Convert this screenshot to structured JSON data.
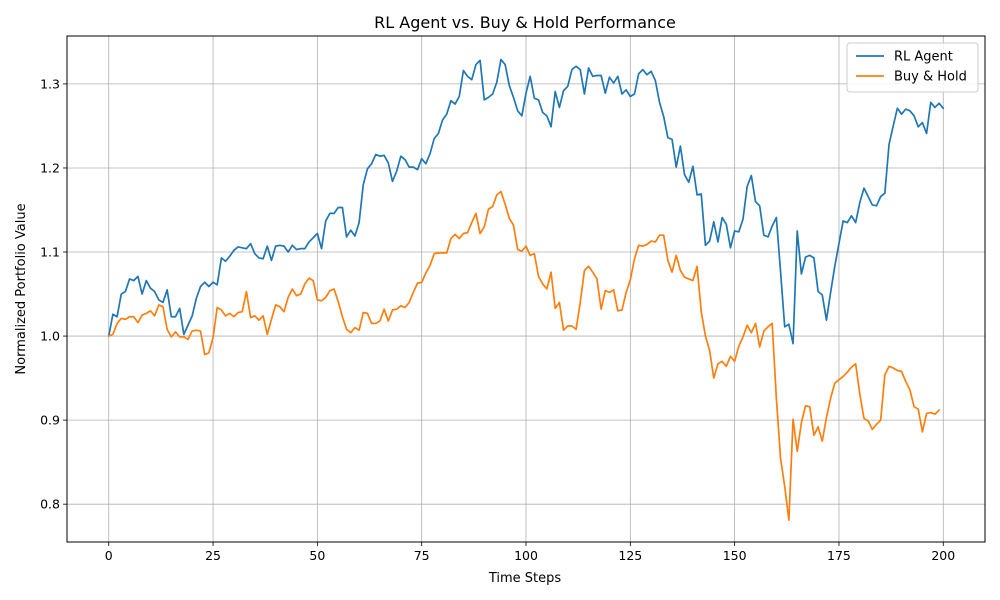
{
  "chart_data": {
    "type": "line",
    "title": "RL Agent vs. Buy & Hold Performance",
    "xlabel": "Time Steps",
    "ylabel": "Normalized Portfolio Value",
    "xlim": [
      -10,
      210
    ],
    "ylim": [
      0.755,
      1.357
    ],
    "xticks": [
      0,
      25,
      50,
      75,
      100,
      125,
      150,
      175,
      200
    ],
    "yticks": [
      0.8,
      0.9,
      1.0,
      1.1,
      1.2,
      1.3
    ],
    "ytick_labels": [
      "0.8",
      "0.9",
      "1.0",
      "1.1",
      "1.2",
      "1.3"
    ],
    "grid": true,
    "legend_position": "top-right",
    "series": [
      {
        "name": "RL Agent",
        "color": "#1f77b4",
        "values": [
          1.0,
          1.026,
          1.023,
          1.05,
          1.053,
          1.068,
          1.066,
          1.071,
          1.05,
          1.066,
          1.057,
          1.053,
          1.043,
          1.04,
          1.055,
          1.023,
          1.023,
          1.033,
          1.002,
          1.013,
          1.024,
          1.045,
          1.059,
          1.064,
          1.059,
          1.064,
          1.061,
          1.093,
          1.089,
          1.095,
          1.102,
          1.106,
          1.105,
          1.104,
          1.11,
          1.098,
          1.093,
          1.092,
          1.107,
          1.09,
          1.107,
          1.108,
          1.107,
          1.1,
          1.108,
          1.103,
          1.104,
          1.104,
          1.112,
          1.117,
          1.122,
          1.104,
          1.137,
          1.146,
          1.146,
          1.153,
          1.153,
          1.118,
          1.126,
          1.119,
          1.135,
          1.18,
          1.199,
          1.205,
          1.216,
          1.214,
          1.215,
          1.206,
          1.184,
          1.196,
          1.214,
          1.21,
          1.201,
          1.201,
          1.198,
          1.211,
          1.205,
          1.217,
          1.235,
          1.241,
          1.257,
          1.264,
          1.28,
          1.276,
          1.285,
          1.316,
          1.309,
          1.305,
          1.323,
          1.328,
          1.281,
          1.284,
          1.288,
          1.302,
          1.329,
          1.323,
          1.298,
          1.284,
          1.268,
          1.262,
          1.289,
          1.309,
          1.283,
          1.281,
          1.266,
          1.262,
          1.249,
          1.291,
          1.272,
          1.292,
          1.297,
          1.317,
          1.321,
          1.317,
          1.288,
          1.319,
          1.309,
          1.31,
          1.31,
          1.289,
          1.308,
          1.301,
          1.309,
          1.288,
          1.293,
          1.285,
          1.288,
          1.312,
          1.317,
          1.311,
          1.315,
          1.304,
          1.278,
          1.261,
          1.236,
          1.234,
          1.201,
          1.226,
          1.192,
          1.183,
          1.202,
          1.168,
          1.169,
          1.108,
          1.113,
          1.136,
          1.112,
          1.141,
          1.133,
          1.105,
          1.125,
          1.124,
          1.139,
          1.178,
          1.191,
          1.16,
          1.155,
          1.12,
          1.118,
          1.131,
          1.141,
          1.077,
          1.011,
          1.014,
          0.991,
          1.125,
          1.074,
          1.094,
          1.096,
          1.093,
          1.053,
          1.049,
          1.019,
          1.052,
          1.083,
          1.11,
          1.137,
          1.135,
          1.143,
          1.135,
          1.159,
          1.176,
          1.166,
          1.156,
          1.155,
          1.166,
          1.17,
          1.228,
          1.25,
          1.271,
          1.264,
          1.27,
          1.268,
          1.262,
          1.249,
          1.254,
          1.241,
          1.278,
          1.272,
          1.277,
          1.271
        ]
      },
      {
        "name": "Buy & Hold",
        "color": "#ff7f0e",
        "values": [
          1.0,
          1.002,
          1.015,
          1.021,
          1.02,
          1.023,
          1.023,
          1.016,
          1.025,
          1.027,
          1.03,
          1.024,
          1.037,
          1.035,
          1.008,
          0.999,
          1.005,
          0.999,
          0.999,
          0.996,
          1.006,
          1.007,
          1.006,
          0.978,
          0.98,
          0.998,
          1.034,
          1.031,
          1.024,
          1.027,
          1.023,
          1.028,
          1.029,
          1.053,
          1.022,
          1.024,
          1.019,
          1.024,
          1.002,
          1.02,
          1.037,
          1.035,
          1.029,
          1.046,
          1.056,
          1.048,
          1.05,
          1.062,
          1.069,
          1.066,
          1.043,
          1.042,
          1.046,
          1.054,
          1.056,
          1.041,
          1.023,
          1.008,
          1.004,
          1.01,
          1.007,
          1.028,
          1.027,
          1.015,
          1.015,
          1.018,
          1.032,
          1.018,
          1.031,
          1.032,
          1.036,
          1.034,
          1.04,
          1.052,
          1.063,
          1.064,
          1.075,
          1.084,
          1.098,
          1.099,
          1.099,
          1.099,
          1.116,
          1.121,
          1.116,
          1.122,
          1.123,
          1.135,
          1.146,
          1.122,
          1.13,
          1.151,
          1.154,
          1.168,
          1.172,
          1.157,
          1.14,
          1.132,
          1.103,
          1.101,
          1.107,
          1.096,
          1.098,
          1.071,
          1.062,
          1.056,
          1.076,
          1.033,
          1.04,
          1.007,
          1.012,
          1.012,
          1.008,
          1.04,
          1.078,
          1.083,
          1.076,
          1.068,
          1.032,
          1.054,
          1.052,
          1.055,
          1.03,
          1.031,
          1.052,
          1.067,
          1.092,
          1.108,
          1.107,
          1.109,
          1.113,
          1.112,
          1.12,
          1.12,
          1.09,
          1.076,
          1.096,
          1.078,
          1.07,
          1.068,
          1.066,
          1.083,
          1.029,
          1.0,
          0.983,
          0.95,
          0.967,
          0.97,
          0.964,
          0.976,
          0.97,
          0.988,
          0.999,
          1.013,
          1.004,
          1.015,
          0.987,
          1.006,
          1.011,
          1.015,
          0.926,
          0.855,
          0.821,
          0.781,
          0.901,
          0.863,
          0.897,
          0.917,
          0.916,
          0.882,
          0.892,
          0.875,
          0.903,
          0.926,
          0.944,
          0.948,
          0.952,
          0.957,
          0.963,
          0.967,
          0.931,
          0.902,
          0.899,
          0.889,
          0.895,
          0.9,
          0.954,
          0.964,
          0.962,
          0.959,
          0.958,
          0.946,
          0.936,
          0.916,
          0.913,
          0.886,
          0.908,
          0.909,
          0.907,
          0.912
        ]
      }
    ]
  }
}
